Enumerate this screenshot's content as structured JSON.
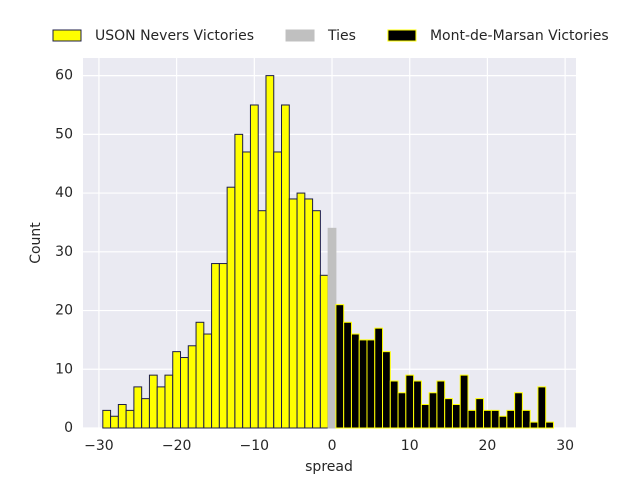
{
  "chart_data": {
    "type": "histogram",
    "xlabel": "spread",
    "ylabel": "Count",
    "xlim": [
      -32.05,
      31.4
    ],
    "ylim": [
      0,
      63
    ],
    "xticks": [
      {
        "value": -30,
        "label": "−30"
      },
      {
        "value": -20,
        "label": "−20"
      },
      {
        "value": -10,
        "label": "−10"
      },
      0,
      10,
      20,
      30
    ],
    "yticks": [
      0,
      10,
      20,
      30,
      40,
      50,
      60
    ],
    "grid": true,
    "legend": "top",
    "series": [
      {
        "name": "USON Nevers Victories",
        "color": "#ffff00",
        "edgecolor": "#1c1c4a",
        "bins": [
          -29.5,
          -28.5,
          -27.5,
          -26.5,
          -25.5,
          -24.5,
          -23.5,
          -22.5,
          -21.5,
          -20.5,
          -19.5,
          -18.5,
          -17.5,
          -16.5,
          -15.5,
          -14.5,
          -13.5,
          -12.5,
          -11.5,
          -10.5,
          -9.5,
          -8.5,
          -7.5,
          -6.5,
          -5.5,
          -4.5,
          -3.5,
          -2.5,
          -1.5,
          -0.5
        ],
        "values": [
          3,
          2,
          4,
          3,
          7,
          5,
          9,
          7,
          9,
          13,
          12,
          14,
          18,
          16,
          28,
          28,
          41,
          50,
          47,
          55,
          37,
          60,
          47,
          55,
          39,
          40,
          39,
          37,
          26
        ]
      },
      {
        "name": "Ties",
        "color": "#c0c0c0",
        "edgecolor": "#c0c0c0",
        "bins": [
          -0.5,
          0.5
        ],
        "values": [
          34
        ]
      },
      {
        "name": "Mont-de-Marsan Victories",
        "color": "#000000",
        "edgecolor": "#ffff00",
        "bins": [
          0.5,
          1.5,
          2.5,
          3.5,
          4.5,
          5.5,
          6.5,
          7.5,
          8.5,
          9.5,
          10.5,
          11.5,
          12.5,
          13.5,
          14.5,
          15.5,
          16.5,
          17.5,
          18.5,
          19.5,
          20.5,
          21.5,
          22.5,
          23.5,
          24.5,
          25.5,
          26.5,
          27.5,
          28.5
        ],
        "values": [
          21,
          18,
          16,
          15,
          15,
          17,
          13,
          8,
          6,
          9,
          8,
          4,
          6,
          8,
          5,
          4,
          9,
          3,
          5,
          3,
          3,
          2,
          3,
          6,
          3,
          1,
          7,
          1
        ]
      }
    ]
  }
}
